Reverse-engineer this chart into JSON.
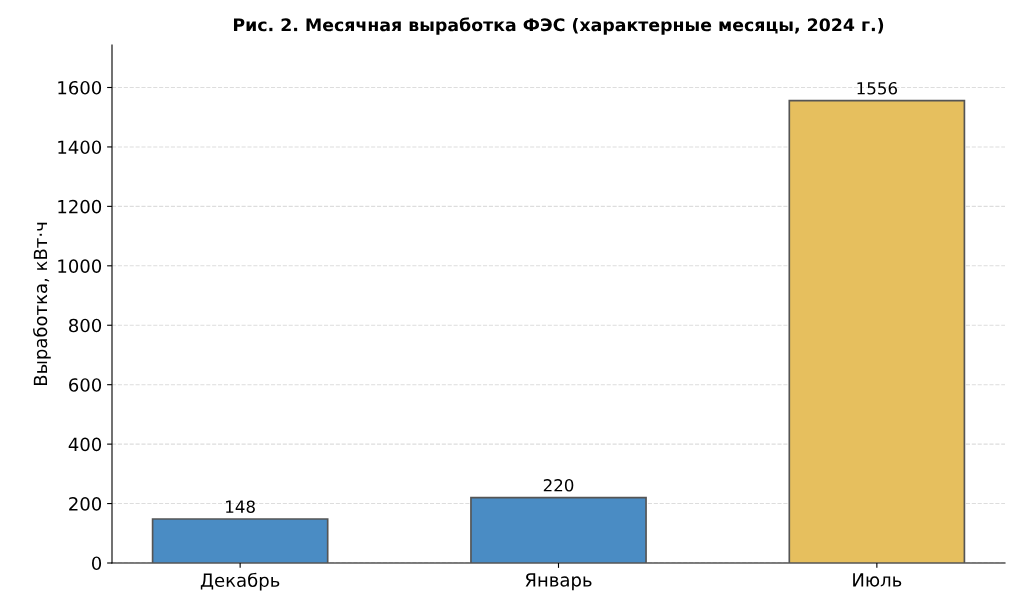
{
  "chart_data": {
    "type": "bar",
    "title": "Рис. 2. Месячная выработка ФЭС (характерные месяцы, 2024 г.)",
    "ylabel": "Выработка, кВт·ч",
    "categories": [
      "Декабрь",
      "Январь",
      "Июль"
    ],
    "values": [
      148,
      220,
      1556
    ],
    "colors": [
      "#4a8cc4",
      "#4a8cc4",
      "#e6bf5e"
    ],
    "ylim": [
      0,
      1743
    ],
    "yticks": [
      0,
      200,
      400,
      600,
      800,
      1000,
      1200,
      1400,
      1600
    ],
    "grid": "y",
    "data_labels": true
  }
}
